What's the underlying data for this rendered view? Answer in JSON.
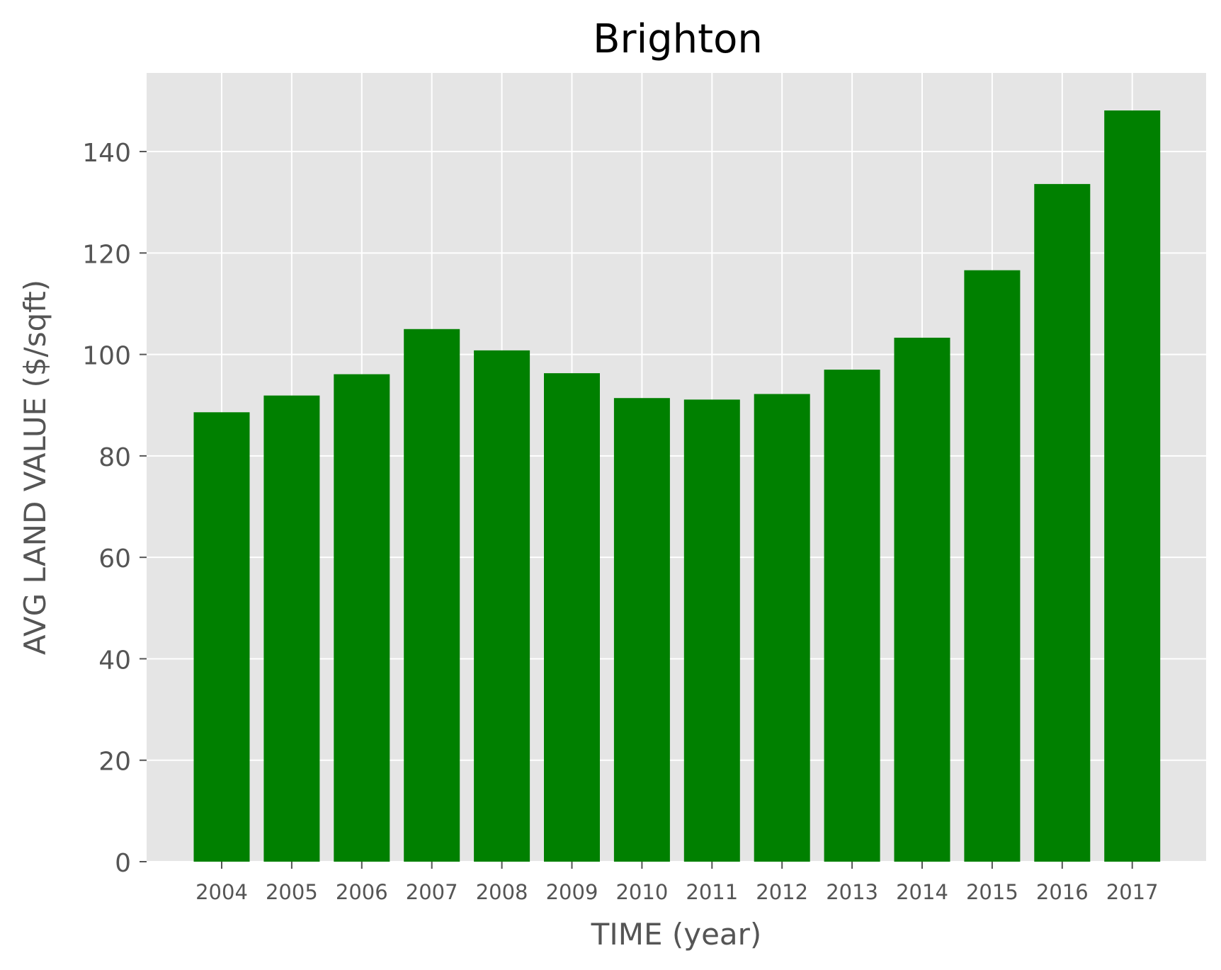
{
  "chart_data": {
    "type": "bar",
    "title": "Brighton",
    "xlabel": "TIME (year)",
    "ylabel": "AVG LAND VALUE ($/sqft)",
    "categories": [
      "2004",
      "2005",
      "2006",
      "2007",
      "2008",
      "2009",
      "2010",
      "2011",
      "2012",
      "2013",
      "2014",
      "2015",
      "2016",
      "2017"
    ],
    "values": [
      88.6,
      91.9,
      96.1,
      105.0,
      100.8,
      96.3,
      91.4,
      91.1,
      92.2,
      97.0,
      103.3,
      116.6,
      133.6,
      148.1
    ],
    "ylim": [
      0,
      155.5
    ],
    "yticks": [
      "0",
      "20",
      "40",
      "60",
      "80",
      "100",
      "120",
      "140"
    ],
    "grid": true,
    "legend": "none",
    "colors": {
      "bar": "#008000",
      "plot_background": "#e5e5e5",
      "grid": "#ffffff",
      "tick_text": "#555555",
      "title_text": "#000000"
    }
  }
}
